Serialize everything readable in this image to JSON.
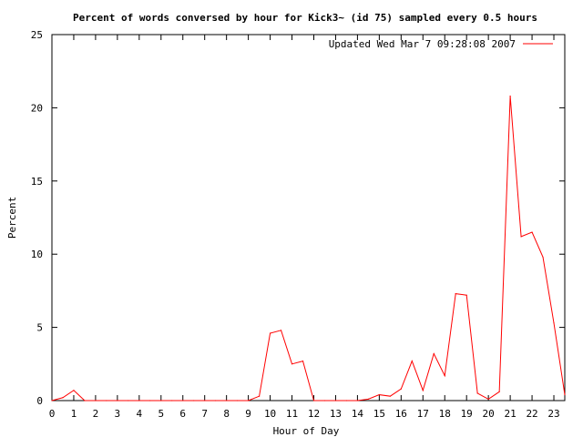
{
  "chart_data": {
    "type": "line",
    "title": "Percent of words conversed by hour for Kick3~ (id 75) sampled every 0.5 hours",
    "xlabel": "Hour of Day",
    "ylabel": "Percent",
    "xlim": [
      0,
      23.5
    ],
    "ylim": [
      0,
      25
    ],
    "xticks": [
      "0",
      "1",
      "2",
      "3",
      "4",
      "5",
      "6",
      "7",
      "8",
      "9",
      "10",
      "11",
      "12",
      "13",
      "14",
      "15",
      "16",
      "17",
      "18",
      "19",
      "20",
      "21",
      "22",
      "23"
    ],
    "yticks": [
      "0",
      "5",
      "10",
      "15",
      "20",
      "25"
    ],
    "grid": false,
    "legend": "top-right",
    "series": [
      {
        "name": "Updated Wed Mar  7 09:28:08 2007",
        "color": "#ff0000",
        "x": [
          0,
          0.5,
          1,
          1.5,
          2,
          2.5,
          3,
          3.5,
          4,
          4.5,
          5,
          5.5,
          6,
          6.5,
          7,
          7.5,
          8,
          8.5,
          9,
          9.5,
          10,
          10.5,
          11,
          11.5,
          12,
          12.5,
          13,
          13.5,
          14,
          14.5,
          15,
          15.5,
          16,
          16.5,
          17,
          17.5,
          18,
          18.5,
          19,
          19.5,
          20,
          20.5,
          21,
          21.5,
          22,
          22.5,
          23,
          23.5
        ],
        "y": [
          0,
          0.2,
          0.7,
          0,
          0,
          0,
          0,
          0,
          0,
          0,
          0,
          0,
          0,
          0,
          0,
          0,
          0,
          0,
          0,
          0.3,
          4.6,
          4.8,
          2.5,
          2.7,
          0,
          0,
          0,
          0,
          0,
          0.1,
          0.4,
          0.3,
          0.8,
          2.7,
          0.7,
          3.2,
          1.7,
          7.3,
          7.2,
          0.5,
          0.1,
          0.6,
          20.8,
          11.2,
          11.5,
          9.8,
          5.3,
          0.4
        ]
      }
    ]
  }
}
